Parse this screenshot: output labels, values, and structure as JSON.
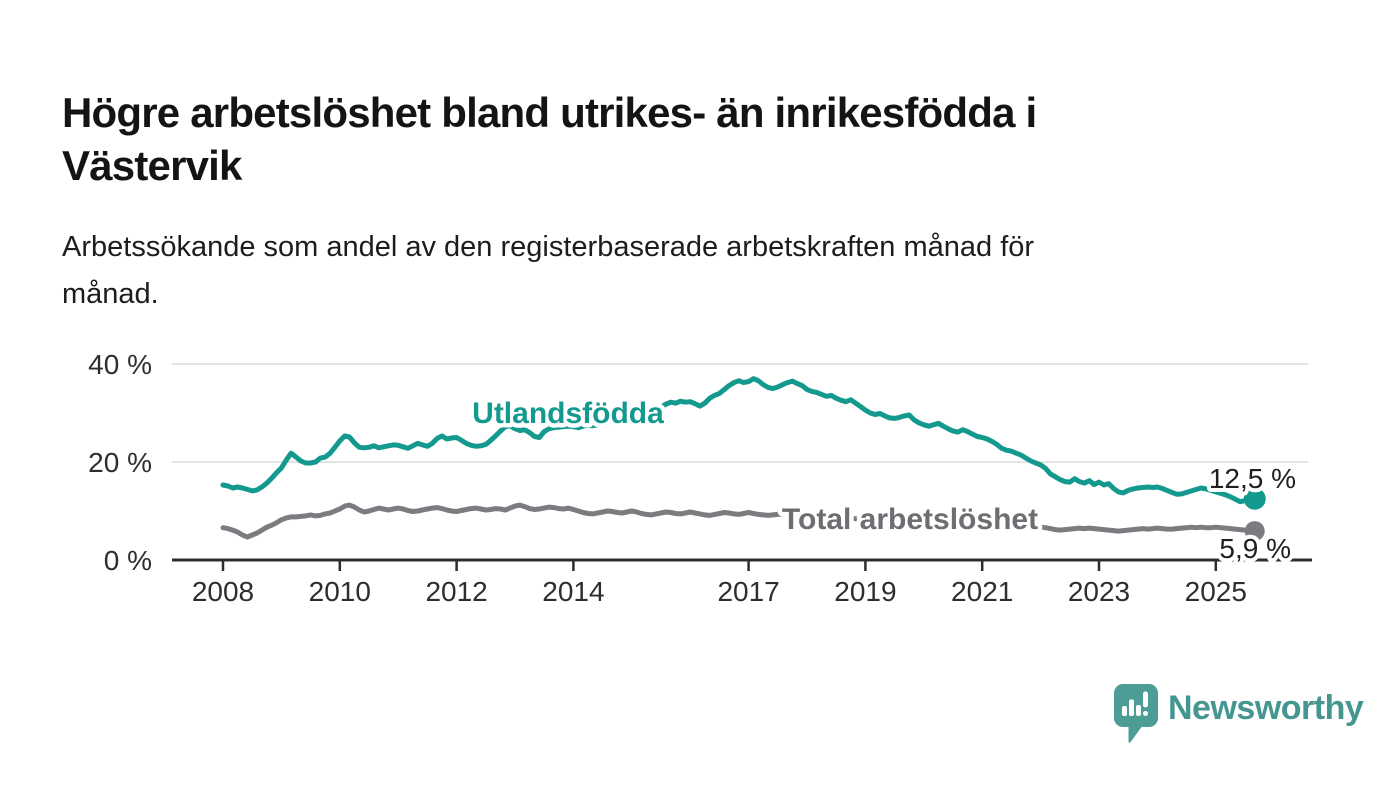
{
  "header": {
    "title_lines": [
      "Högre arbetslöshet bland utrikes- än inrikesfödda i",
      "Västervik"
    ],
    "subtitle_lines": [
      "Arbetssökande som andel av den registerbaserade arbetskraften månad för",
      "månad."
    ]
  },
  "chart_data": {
    "type": "line",
    "unit": "%",
    "x_start": "2008-01",
    "x_step_months": 1,
    "ylim": [
      0,
      40
    ],
    "grid": "horizontal",
    "legend_position": "inline-labels",
    "y_ticks": [
      {
        "value": 0,
        "label": "0 %"
      },
      {
        "value": 20,
        "label": "20 %"
      },
      {
        "value": 40,
        "label": "40 %"
      }
    ],
    "x_ticks": [
      {
        "value": 2008,
        "label": "2008"
      },
      {
        "value": 2010,
        "label": "2010"
      },
      {
        "value": 2012,
        "label": "2012"
      },
      {
        "value": 2014,
        "label": "2014"
      },
      {
        "value": 2017,
        "label": "2017"
      },
      {
        "value": 2019,
        "label": "2019"
      },
      {
        "value": 2021,
        "label": "2021"
      },
      {
        "value": 2023,
        "label": "2023"
      },
      {
        "value": 2025,
        "label": "2025"
      }
    ],
    "series": [
      {
        "name": "Utlandsfödda",
        "color": "#14998f",
        "end_label": "12,5 %",
        "end_value": 12.5,
        "values": [
          15.3,
          15.1,
          14.7,
          14.9,
          14.7,
          14.4,
          14.1,
          14.3,
          14.9,
          15.7,
          16.7,
          17.8,
          18.8,
          20.4,
          21.8,
          21.0,
          20.2,
          19.8,
          19.8,
          20.0,
          20.8,
          21.0,
          21.8,
          23.0,
          24.3,
          25.3,
          25.1,
          23.9,
          23.0,
          22.9,
          23.0,
          23.3,
          22.9,
          23.1,
          23.3,
          23.5,
          23.4,
          23.1,
          22.8,
          23.3,
          23.8,
          23.5,
          23.2,
          23.8,
          24.8,
          25.3,
          24.7,
          24.9,
          25.0,
          24.4,
          23.8,
          23.4,
          23.2,
          23.3,
          23.6,
          24.4,
          25.3,
          26.3,
          27.2,
          27.4,
          26.8,
          26.4,
          26.6,
          26.0,
          25.2,
          25.0,
          26.2,
          26.8,
          27.0,
          27.1,
          27.2,
          27.3,
          27.2,
          27.0,
          27.3,
          27.5,
          27.4,
          27.6,
          27.8,
          28.0,
          28.2,
          28.4,
          28.7,
          28.9,
          29.0,
          29.3,
          29.6,
          29.9,
          30.3,
          30.7,
          31.2,
          31.8,
          32.2,
          32.0,
          32.4,
          32.2,
          32.3,
          31.9,
          31.4,
          32.0,
          33.0,
          33.6,
          34.0,
          34.8,
          35.6,
          36.2,
          36.6,
          36.2,
          36.4,
          37.0,
          36.6,
          35.8,
          35.2,
          35.0,
          35.3,
          35.8,
          36.2,
          36.5,
          36.0,
          35.6,
          34.8,
          34.4,
          34.2,
          33.8,
          33.4,
          33.6,
          33.0,
          32.6,
          32.3,
          32.7,
          32.0,
          31.3,
          30.6,
          30.0,
          29.7,
          29.9,
          29.4,
          29.0,
          28.9,
          29.1,
          29.4,
          29.6,
          28.6,
          28.0,
          27.6,
          27.3,
          27.6,
          27.9,
          27.3,
          26.8,
          26.3,
          26.1,
          26.6,
          26.2,
          25.7,
          25.2,
          25.0,
          24.7,
          24.2,
          23.6,
          22.8,
          22.4,
          22.2,
          21.8,
          21.4,
          20.8,
          20.2,
          19.8,
          19.4,
          18.7,
          17.6,
          17.0,
          16.4,
          16.0,
          15.9,
          16.6,
          16.0,
          15.7,
          16.2,
          15.4,
          15.9,
          15.3,
          15.6,
          14.6,
          13.9,
          13.7,
          14.2,
          14.5,
          14.7,
          14.8,
          14.9,
          14.8,
          14.9,
          14.6,
          14.2,
          13.8,
          13.4,
          13.5,
          13.8,
          14.1,
          14.4,
          14.7,
          14.5,
          14.2,
          13.9,
          13.6,
          13.3,
          12.9,
          12.4,
          11.9,
          12.1,
          12.3,
          12.5
        ]
      },
      {
        "name": "Total arbetslöshet",
        "color": "#7b7b80",
        "end_label": "5,9 %",
        "end_value": 5.9,
        "values": [
          6.6,
          6.4,
          6.1,
          5.7,
          5.1,
          4.7,
          5.1,
          5.5,
          6.1,
          6.7,
          7.1,
          7.6,
          8.2,
          8.6,
          8.8,
          8.8,
          8.9,
          9.0,
          9.2,
          9.0,
          9.1,
          9.4,
          9.6,
          10.0,
          10.4,
          11.0,
          11.2,
          10.8,
          10.2,
          9.8,
          10.0,
          10.3,
          10.6,
          10.4,
          10.2,
          10.4,
          10.6,
          10.4,
          10.1,
          9.9,
          10.0,
          10.2,
          10.4,
          10.6,
          10.7,
          10.5,
          10.2,
          10.0,
          9.9,
          10.1,
          10.3,
          10.5,
          10.6,
          10.4,
          10.2,
          10.3,
          10.5,
          10.4,
          10.2,
          10.6,
          11.0,
          11.2,
          10.9,
          10.5,
          10.3,
          10.4,
          10.6,
          10.8,
          10.7,
          10.5,
          10.4,
          10.6,
          10.3,
          10.0,
          9.7,
          9.5,
          9.4,
          9.6,
          9.8,
          10.0,
          9.9,
          9.7,
          9.6,
          9.8,
          10.0,
          9.8,
          9.5,
          9.3,
          9.2,
          9.4,
          9.6,
          9.8,
          9.7,
          9.5,
          9.4,
          9.6,
          9.8,
          9.6,
          9.4,
          9.2,
          9.1,
          9.3,
          9.5,
          9.7,
          9.6,
          9.4,
          9.3,
          9.5,
          9.7,
          9.5,
          9.3,
          9.2,
          9.1,
          9.2,
          9.3,
          9.4,
          9.3,
          9.2,
          9.1,
          9.2,
          9.1,
          9.0,
          8.9,
          8.8,
          8.7,
          8.7,
          8.6,
          8.6,
          8.5,
          8.5,
          8.4,
          8.4,
          8.3,
          8.2,
          8.2,
          8.1,
          8.1,
          8.0,
          8.0,
          8.1,
          8.1,
          8.0,
          8.0,
          8.1,
          8.2,
          8.4,
          8.8,
          9.2,
          9.4,
          9.3,
          9.2,
          9.1,
          9.0,
          8.9,
          8.8,
          8.7,
          8.6,
          8.5,
          8.3,
          8.1,
          7.9,
          7.7,
          7.5,
          7.3,
          7.1,
          7.0,
          6.9,
          6.8,
          6.7,
          6.6,
          6.4,
          6.2,
          6.1,
          6.2,
          6.3,
          6.4,
          6.5,
          6.4,
          6.5,
          6.4,
          6.3,
          6.2,
          6.1,
          6.0,
          5.9,
          6.0,
          6.1,
          6.2,
          6.3,
          6.4,
          6.3,
          6.4,
          6.5,
          6.4,
          6.3,
          6.3,
          6.4,
          6.5,
          6.6,
          6.7,
          6.6,
          6.7,
          6.6,
          6.6,
          6.7,
          6.6,
          6.5,
          6.4,
          6.3,
          6.2,
          6.1,
          6.0,
          5.9
        ]
      }
    ]
  },
  "footer": {
    "logo_text": "Newsworthy"
  },
  "colors": {
    "accent_teal": "#14998f",
    "line_gray": "#7b7b80",
    "label_gray": "#6d6d72",
    "logo_teal": "#4d9d97",
    "axis": "#2e2e2e",
    "grid": "#dcdcdc",
    "text_dark": "#1f1f1f"
  }
}
